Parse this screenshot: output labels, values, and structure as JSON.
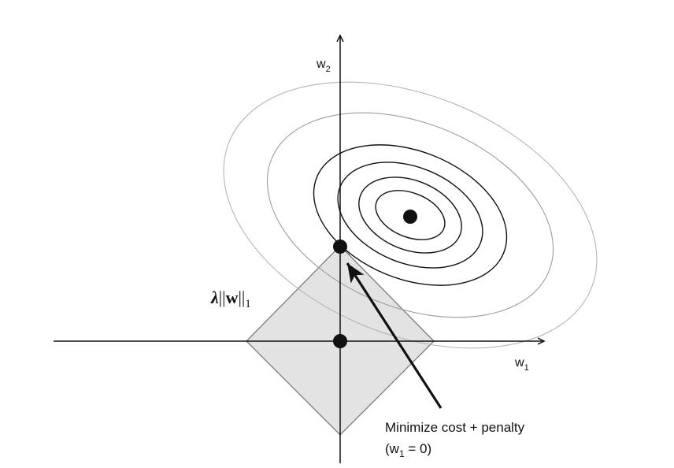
{
  "diagram": {
    "axis_labels": {
      "w2": {
        "base": "w",
        "sub": "2"
      },
      "w1": {
        "base": "w",
        "sub": "1"
      }
    },
    "penalty_label": {
      "lambda": "λ",
      "bars_open": "||",
      "w": "w",
      "bars_close": "||",
      "sub": "1"
    },
    "annotation": {
      "line1": "Minimize cost + penalty",
      "line2_open": "(w",
      "line2_sub": "1",
      "line2_close": " = 0)"
    },
    "colors": {
      "axis": "#111111",
      "diamond_fill": "#e3e3e3",
      "diamond_stroke": "#7a7a7a",
      "contour_dark": "#111111",
      "contour_light": "#b5b5b5"
    }
  }
}
